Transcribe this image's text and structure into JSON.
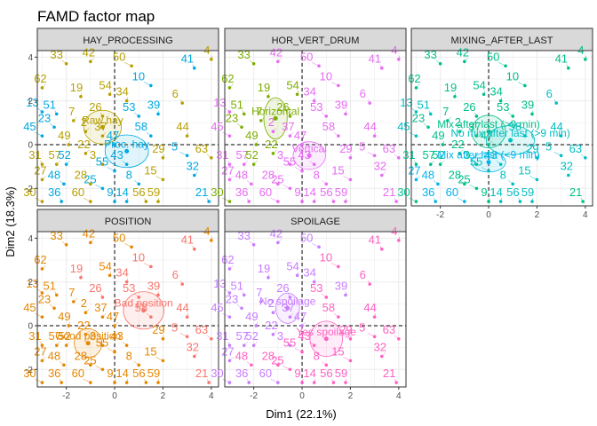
{
  "figure": {
    "title": "FAMD factor map",
    "xlabel": "Dim1 (22.1%)",
    "ylabel": "Dim2 (18.3%)"
  },
  "chart_data": {
    "type": "scatter",
    "title": "FAMD factor map",
    "xlabel": "Dim1 (22.1%)",
    "ylabel": "Dim2 (18.3%)",
    "xlim": [
      -3.2,
      4.3
    ],
    "ylim": [
      -2.8,
      4.3
    ],
    "xticks": [
      -2,
      0,
      2,
      4
    ],
    "yticks": [
      -2,
      0,
      2,
      4
    ],
    "grid": true,
    "points": [
      {
        "id": "4",
        "x": 4.0,
        "y": 3.9
      },
      {
        "id": "41",
        "x": 3.3,
        "y": 3.5
      },
      {
        "id": "50",
        "x": 0.7,
        "y": 3.6
      },
      {
        "id": "42",
        "x": -1.0,
        "y": 3.8
      },
      {
        "id": "33",
        "x": -2.0,
        "y": 3.7
      },
      {
        "id": "10",
        "x": 1.5,
        "y": 2.7
      },
      {
        "id": "62",
        "x": -3.0,
        "y": 2.6
      },
      {
        "id": "54",
        "x": -0.2,
        "y": 2.3
      },
      {
        "id": "19",
        "x": -1.4,
        "y": 2.2
      },
      {
        "id": "34",
        "x": 0.5,
        "y": 2.0
      },
      {
        "id": "6",
        "x": 2.8,
        "y": 1.9
      },
      {
        "id": "13",
        "x": -3.0,
        "y": 1.5
      },
      {
        "id": "51",
        "x": -2.4,
        "y": 1.4
      },
      {
        "id": "26",
        "x": -0.5,
        "y": 1.3
      },
      {
        "id": "39",
        "x": 1.8,
        "y": 1.4
      },
      {
        "id": "53",
        "x": 1.0,
        "y": 1.3
      },
      {
        "id": "7",
        "x": -1.7,
        "y": 1.1
      },
      {
        "id": "23",
        "x": -2.5,
        "y": 0.8
      },
      {
        "id": "2",
        "x": -1.2,
        "y": 0.6
      },
      {
        "id": "45",
        "x": -3.0,
        "y": 0.4
      },
      {
        "id": "37",
        "x": -0.5,
        "y": 0.4
      },
      {
        "id": "58",
        "x": 1.5,
        "y": 0.4
      },
      {
        "id": "44",
        "x": 3.0,
        "y": 0.4
      },
      {
        "id": "49",
        "x": -1.9,
        "y": 0.0
      },
      {
        "id": "47",
        "x": 0.0,
        "y": 0.0
      },
      {
        "id": "22",
        "x": -1.2,
        "y": -0.4
      },
      {
        "id": "5",
        "x": 3.0,
        "y": -0.5
      },
      {
        "id": "31",
        "x": -3.0,
        "y": -0.9
      },
      {
        "id": "57",
        "x": -2.4,
        "y": -0.9
      },
      {
        "id": "52",
        "x": -2.0,
        "y": -0.9
      },
      {
        "id": "3",
        "x": -0.5,
        "y": -0.9
      },
      {
        "id": "43",
        "x": 0.5,
        "y": -0.9
      },
      {
        "id": "29",
        "x": 2.0,
        "y": -0.6
      },
      {
        "id": "63",
        "x": 4.0,
        "y": -0.6
      },
      {
        "id": "55",
        "x": 0.0,
        "y": -1.2
      },
      {
        "id": "27",
        "x": -3.0,
        "y": -1.6
      },
      {
        "id": "48",
        "x": -2.1,
        "y": -1.8
      },
      {
        "id": "25",
        "x": -0.5,
        "y": -2.0
      },
      {
        "id": "28",
        "x": -1.0,
        "y": -1.8
      },
      {
        "id": "8",
        "x": 1.0,
        "y": -1.8
      },
      {
        "id": "15",
        "x": 2.0,
        "y": -1.6
      },
      {
        "id": "32",
        "x": 3.3,
        "y": -1.4
      },
      {
        "id": "30",
        "x": -3.0,
        "y": -2.6
      },
      {
        "id": "36",
        "x": -2.2,
        "y": -2.6
      },
      {
        "id": "60",
        "x": -1.0,
        "y": -2.6
      },
      {
        "id": "9",
        "x": 0.0,
        "y": -2.6
      },
      {
        "id": "14",
        "x": 0.5,
        "y": -2.6
      },
      {
        "id": "56",
        "x": 1.3,
        "y": -2.6
      },
      {
        "id": "59",
        "x": 1.8,
        "y": -2.6
      },
      {
        "id": "21",
        "x": 3.9,
        "y": -2.6
      }
    ],
    "panels": [
      {
        "strip": "HAY_PROCESSING",
        "categories": [
          {
            "label": "Raw hay",
            "x": -0.5,
            "y": 0.8,
            "color": "#b79f00"
          },
          {
            "label": "Proc. hay",
            "x": 0.5,
            "y": -0.3,
            "color": "#00a9e0"
          }
        ],
        "assignments": {
          "4": 0,
          "41": 1,
          "50": 0,
          "42": 0,
          "33": 0,
          "10": 1,
          "62": 0,
          "54": 0,
          "19": 0,
          "34": 0,
          "6": 0,
          "13": 1,
          "51": 1,
          "26": 0,
          "39": 1,
          "53": 1,
          "7": 0,
          "23": 1,
          "2": 0,
          "45": 1,
          "37": 0,
          "58": 1,
          "44": 0,
          "49": 0,
          "47": 1,
          "22": 0,
          "5": 1,
          "31": 0,
          "57": 0,
          "52": 1,
          "3": 0,
          "43": 1,
          "29": 0,
          "63": 0,
          "55": 1,
          "27": 0,
          "48": 1,
          "25": 1,
          "28": 0,
          "8": 1,
          "15": 0,
          "32": 1,
          "30": 0,
          "36": 1,
          "60": 0,
          "9": 1,
          "14": 1,
          "56": 0,
          "59": 0,
          "21": 1
        }
      },
      {
        "strip": "HOR_VERT_DRUM",
        "categories": [
          {
            "label": "Horizontal",
            "x": -1.1,
            "y": 1.2,
            "color": "#7cae00"
          },
          {
            "label": "Vertical",
            "x": 0.3,
            "y": -0.5,
            "color": "#e76bf3"
          }
        ],
        "assignments": {
          "4": 1,
          "41": 1,
          "50": 1,
          "42": 1,
          "33": 0,
          "10": 1,
          "62": 0,
          "54": 0,
          "19": 0,
          "34": 1,
          "6": 1,
          "13": 1,
          "51": 0,
          "26": 0,
          "39": 1,
          "53": 1,
          "7": 0,
          "23": 0,
          "2": 1,
          "45": 1,
          "37": 1,
          "58": 1,
          "44": 1,
          "49": 0,
          "47": 1,
          "22": 0,
          "5": 1,
          "31": 1,
          "57": 1,
          "52": 0,
          "3": 1,
          "43": 1,
          "29": 1,
          "63": 1,
          "55": 1,
          "27": 1,
          "48": 1,
          "25": 1,
          "28": 1,
          "8": 1,
          "15": 1,
          "32": 1,
          "30": 0,
          "36": 1,
          "60": 1,
          "9": 1,
          "14": 1,
          "56": 1,
          "59": 1,
          "21": 1
        }
      },
      {
        "strip": "MIXING_AFTER_LAST",
        "categories": [
          {
            "label": "Mix after last (>9 min)",
            "x": 0.0,
            "y": 0.6,
            "color": "#00c08b"
          },
          {
            "label": "No mix after last (>9 min)",
            "x": 0.9,
            "y": 0.2,
            "color": "#00bfc4"
          },
          {
            "label": "Mix after last (<9 min)",
            "x": 0.0,
            "y": -0.8,
            "color": "#00b4f0"
          }
        ],
        "assignments": {
          "4": 0,
          "41": 0,
          "50": 0,
          "42": 0,
          "33": 0,
          "10": 0,
          "62": 0,
          "54": 0,
          "19": 0,
          "34": 0,
          "6": 1,
          "13": 1,
          "51": 1,
          "26": 0,
          "39": 0,
          "53": 0,
          "7": 0,
          "23": 0,
          "2": 0,
          "45": 1,
          "37": 0,
          "58": 1,
          "44": 1,
          "49": 0,
          "47": 0,
          "22": 0,
          "5": 1,
          "31": 0,
          "57": 0,
          "52": 0,
          "3": 0,
          "43": 1,
          "29": 1,
          "63": 1,
          "55": 1,
          "27": 2,
          "48": 2,
          "25": 0,
          "28": 0,
          "8": 1,
          "15": 1,
          "32": 1,
          "30": 0,
          "36": 2,
          "60": 2,
          "9": 0,
          "14": 1,
          "56": 1,
          "59": 1,
          "21": 0
        }
      },
      {
        "strip": "POSITION",
        "categories": [
          {
            "label": "Bad position",
            "x": 1.2,
            "y": 0.7,
            "color": "#f8766d"
          },
          {
            "label": "Good position",
            "x": -1.1,
            "y": -0.8,
            "color": "#e58700"
          }
        ],
        "assignments": {
          "4": 1,
          "41": 0,
          "50": 1,
          "42": 1,
          "33": 1,
          "10": 0,
          "62": 1,
          "54": 1,
          "19": 0,
          "34": 0,
          "6": 0,
          "13": 1,
          "51": 1,
          "26": 0,
          "39": 0,
          "53": 0,
          "7": 1,
          "23": 1,
          "2": 1,
          "45": 1,
          "37": 1,
          "58": 0,
          "44": 0,
          "49": 1,
          "47": 1,
          "22": 1,
          "5": 0,
          "31": 1,
          "57": 1,
          "52": 1,
          "3": 1,
          "43": 1,
          "29": 1,
          "63": 0,
          "55": 1,
          "27": 1,
          "48": 1,
          "25": 1,
          "28": 1,
          "8": 1,
          "15": 1,
          "32": 0,
          "30": 1,
          "36": 1,
          "60": 1,
          "9": 1,
          "14": 1,
          "56": 1,
          "59": 1,
          "21": 0
        }
      },
      {
        "strip": "SPOILAGE",
        "categories": [
          {
            "label": "No spoilage",
            "x": -0.6,
            "y": 0.8,
            "color": "#c77cff"
          },
          {
            "label": "Yes spoilage",
            "x": 1.0,
            "y": -0.6,
            "color": "#ff61c3"
          }
        ],
        "assignments": {
          "4": 1,
          "41": 1,
          "50": 0,
          "42": 0,
          "33": 0,
          "10": 1,
          "62": 0,
          "54": 0,
          "19": 0,
          "34": 0,
          "6": 1,
          "13": 0,
          "51": 0,
          "26": 0,
          "39": 0,
          "53": 1,
          "7": 0,
          "23": 0,
          "2": 0,
          "45": 0,
          "37": 0,
          "58": 1,
          "44": 1,
          "49": 0,
          "47": 0,
          "22": 0,
          "5": 1,
          "31": 0,
          "57": 0,
          "52": 0,
          "3": 0,
          "43": 1,
          "29": 1,
          "63": 1,
          "55": 1,
          "27": 0,
          "48": 1,
          "25": 1,
          "28": 1,
          "8": 1,
          "15": 1,
          "32": 1,
          "30": 0,
          "36": 0,
          "60": 0,
          "9": 1,
          "14": 1,
          "56": 1,
          "59": 1,
          "21": 1
        }
      }
    ]
  }
}
